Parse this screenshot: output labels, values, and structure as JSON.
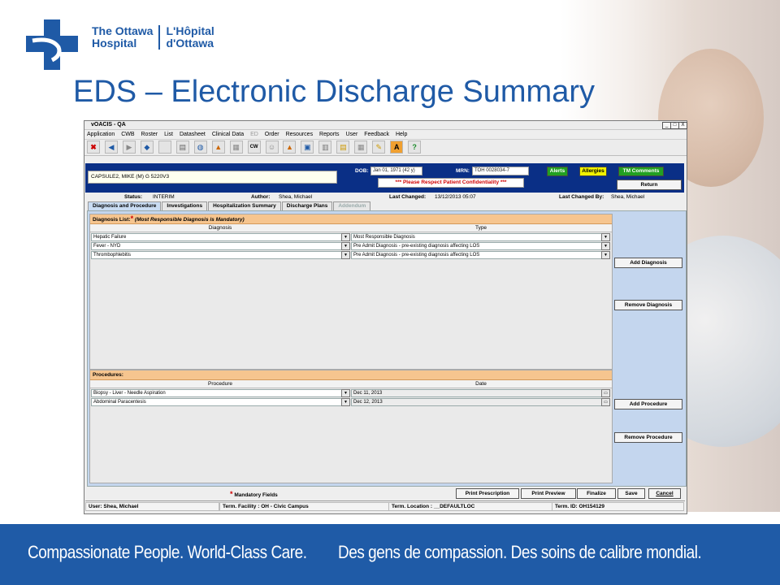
{
  "slide": {
    "logo": {
      "en_line1": "The Ottawa",
      "en_line2": "Hospital",
      "fr_line1": "L'Hôpital",
      "fr_line2": "d'Ottawa"
    },
    "title": "EDS – Electronic Discharge Summary",
    "banner_en": "Compassionate People. World-Class Care.",
    "banner_fr": "Des gens de compassion. Des soins de calibre mondial.",
    "brand_color": "#1f5ba7"
  },
  "window": {
    "title": "vOACIS - QA",
    "controls": [
      "_",
      "□",
      "X"
    ],
    "menu": [
      "Application",
      "CWB",
      "Roster",
      "List",
      "Datasheet",
      "Clinical Data",
      "ED",
      "Order",
      "Resources",
      "Reports",
      "User",
      "Feedback",
      "Help"
    ],
    "toolbar_icons": [
      "close-icon",
      "back-icon",
      "forward-icon",
      "nav-icon",
      "blank-icon",
      "document-icon",
      "globe-icon",
      "alert-icon",
      "image-icon",
      "cw-icon",
      "person-icon",
      "warning-icon",
      "print-icon",
      "cart-icon",
      "notes-icon",
      "table-icon",
      "edit-icon",
      "a-icon",
      "help-icon"
    ],
    "toolbar_cw": "CW"
  },
  "patient": {
    "name": "CAPSULE2, MIKE (M) G 5220V3",
    "dob_label": "DOB:",
    "dob": "Jan 01, 1971 (42 y)",
    "mrn_label": "MRN:",
    "mrn": "TOH 0028034-7",
    "alerts": "Alerts",
    "allergies": "Allergies",
    "tm_comments": "TM Comments",
    "confidentiality": "*** Please Respect Patient Confidentiality ***",
    "return": "Return"
  },
  "status": {
    "status_label": "Status:",
    "status_value": "INTERIM",
    "author_label": "Author:",
    "author_value": "Shea, Michael",
    "last_changed_label": "Last Changed:",
    "last_changed_value": "13/12/2013 05:07",
    "last_changed_by_label": "Last Changed By:",
    "last_changed_by_value": "Shea, Michael"
  },
  "tabs": [
    {
      "label": "Diagnosis and Procedure"
    },
    {
      "label": "Investigations"
    },
    {
      "label": "Hospitalization Summary"
    },
    {
      "label": "Discharge Plans"
    },
    {
      "label": "Addendum"
    }
  ],
  "diagnosis": {
    "header": "Diagnosis List:",
    "header_note": "(Most Responsible Diagnosis is Mandatory)",
    "col_diagnosis": "Diagnosis",
    "col_type": "Type",
    "rows": [
      {
        "diagnosis": "Hepatic Failure",
        "type": "Most Responsible Diagnosis"
      },
      {
        "diagnosis": "Fever - NYD",
        "type": "Pre Admit Diagnosis - pre-existing diagnosis affecting LOS"
      },
      {
        "diagnosis": "Thrombophlebitis",
        "type": "Pre Admit Diagnosis - pre-existing diagnosis affecting LOS"
      }
    ],
    "add_button": "Add Diagnosis",
    "remove_button": "Remove Diagnosis"
  },
  "procedures": {
    "header": "Procedures:",
    "col_procedure": "Procedure",
    "col_date": "Date",
    "rows": [
      {
        "procedure": "Biopsy - Liver - Needle Aspiration",
        "date": "Dec 11, 2013"
      },
      {
        "procedure": "Abdominal Paracentesis",
        "date": "Dec 12, 2013"
      }
    ],
    "add_button": "Add Procedure",
    "remove_button": "Remove Procedure"
  },
  "footer": {
    "mandatory": "Mandatory Fields",
    "print_prescription": "Print Prescription",
    "print_preview": "Print Preview",
    "finalize": "Finalize",
    "save": "Save",
    "cancel": "Cancel"
  },
  "statusbar": {
    "user": "User: Shea, Michael",
    "facility": "Term. Facility : OH - Civic Campus",
    "location": "Term. Location : __DEFAULTLOC",
    "term_id": "Term. ID: OH154129"
  }
}
